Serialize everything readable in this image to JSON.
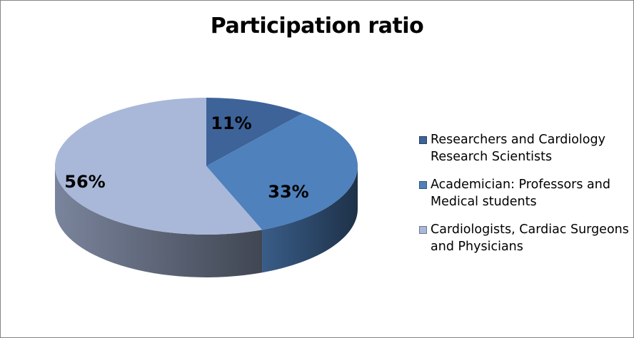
{
  "chart_data": {
    "type": "pie",
    "title": "Participation ratio",
    "categories": [
      "Researchers and Cardiology Research Scientists",
      "Academician: Professors and Medical students",
      "Cardiologists, Cardiac Surgeons and Physicians"
    ],
    "values": [
      11,
      33,
      56
    ],
    "value_labels": [
      "11%",
      "33%",
      "56%"
    ],
    "colors": [
      "#3d6399",
      "#4f81bd",
      "#a9b8d8"
    ],
    "legend_position": "right",
    "style": "3d-pie"
  }
}
